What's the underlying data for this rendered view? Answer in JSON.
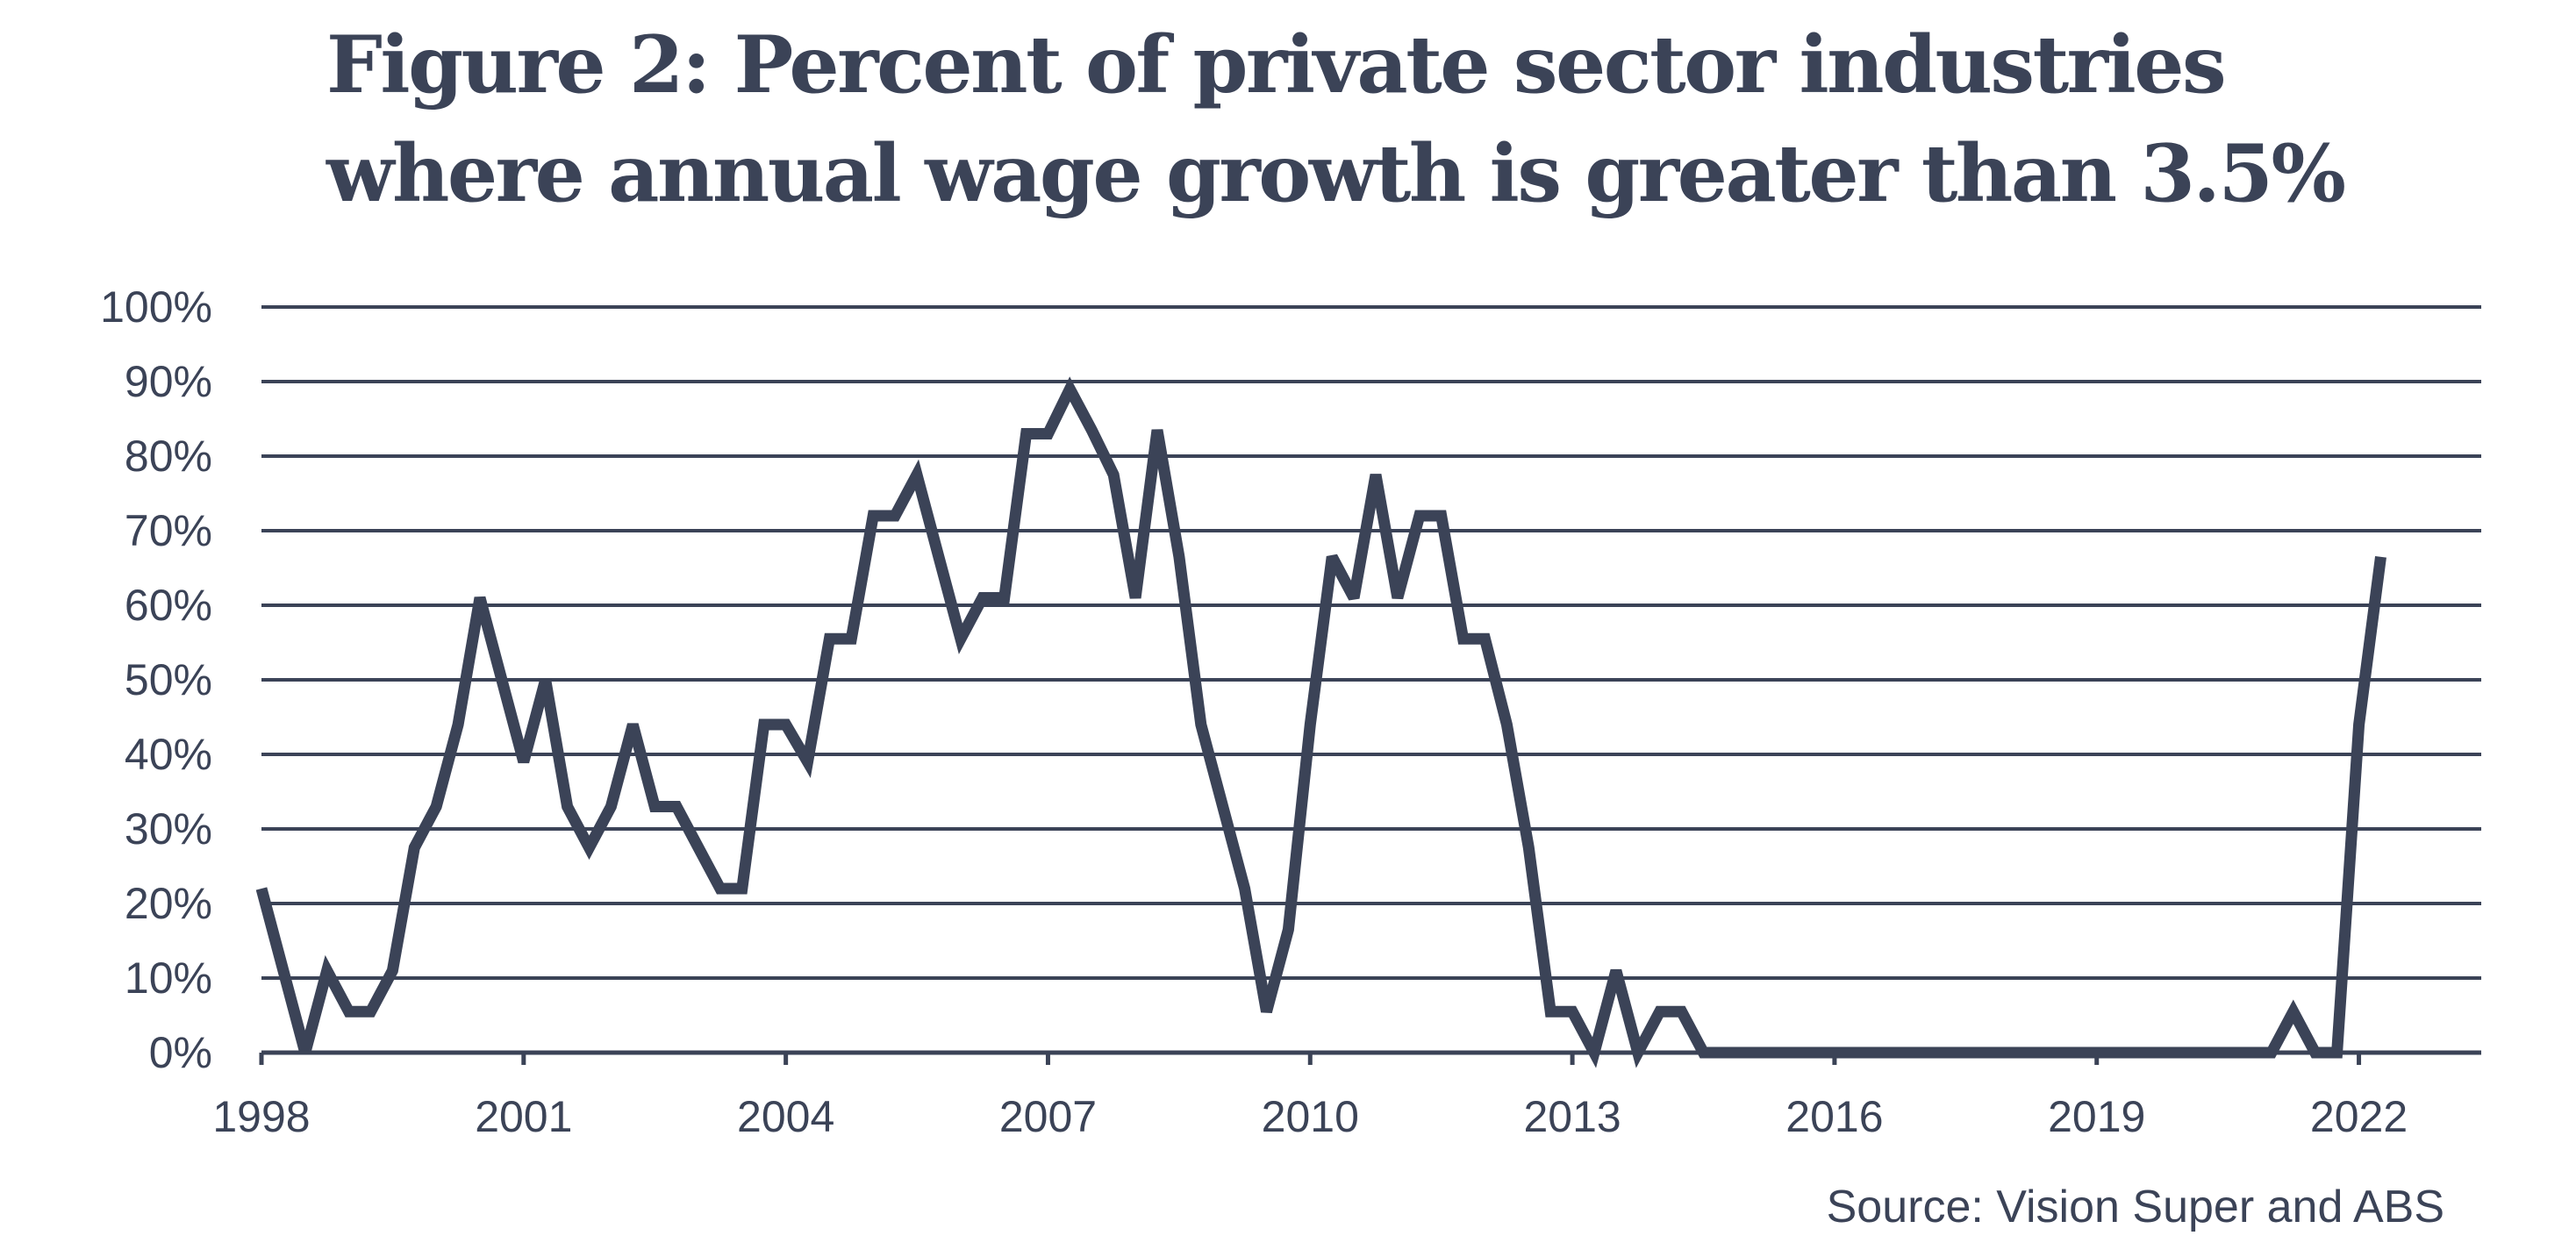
{
  "chart_data": {
    "type": "line",
    "title_lines": [
      "Figure 2: Percent of private sector industries",
      "where annual wage growth is greater than 3.5%"
    ],
    "source": "Source: Vision Super and ABS",
    "color": "#3b4357",
    "xlim": [
      1998,
      2023.4
    ],
    "ylim": [
      0,
      100
    ],
    "x_ticks": [
      1998,
      2001,
      2004,
      2007,
      2010,
      2013,
      2016,
      2019,
      2022
    ],
    "x_tick_labels": [
      "1998",
      "2001",
      "2004",
      "2007",
      "2010",
      "2013",
      "2016",
      "2019",
      "2022"
    ],
    "y_ticks": [
      0,
      10,
      20,
      30,
      40,
      50,
      60,
      70,
      80,
      90,
      100
    ],
    "y_tick_labels": [
      "0%",
      "10%",
      "20%",
      "30%",
      "40%",
      "50%",
      "60%",
      "70%",
      "80%",
      "90%",
      "100%"
    ],
    "grid": true,
    "series": [
      {
        "x": [
          1998.0,
          1998.25,
          1998.5,
          1998.75,
          1999.0,
          1999.25,
          1999.5,
          1999.75,
          2000.0,
          2000.25,
          2000.5,
          2000.75,
          2001.0,
          2001.25,
          2001.5,
          2001.75,
          2002.0,
          2002.25,
          2002.5,
          2002.75,
          2003.0,
          2003.25,
          2003.5,
          2003.75,
          2004.0,
          2004.25,
          2004.5,
          2004.75,
          2005.0,
          2005.25,
          2005.5,
          2005.75,
          2006.0,
          2006.25,
          2006.5,
          2006.75,
          2007.0,
          2007.25,
          2007.5,
          2007.75,
          2008.0,
          2008.25,
          2008.5,
          2008.75,
          2009.0,
          2009.25,
          2009.5,
          2009.75,
          2010.0,
          2010.25,
          2010.5,
          2010.75,
          2011.0,
          2011.25,
          2011.5,
          2011.75,
          2012.0,
          2012.25,
          2012.5,
          2012.75,
          2013.0,
          2013.25,
          2013.5,
          2013.75,
          2014.0,
          2014.25,
          2014.5,
          2014.75,
          2015.0,
          2015.25,
          2015.5,
          2015.75,
          2016.0,
          2016.25,
          2016.5,
          2016.75,
          2017.0,
          2017.25,
          2017.5,
          2017.75,
          2018.0,
          2018.25,
          2018.5,
          2018.75,
          2019.0,
          2019.25,
          2019.5,
          2019.75,
          2020.0,
          2020.25,
          2020.5,
          2020.75,
          2021.0,
          2021.25,
          2021.5,
          2021.75,
          2022.0,
          2022.25
        ],
        "values": [
          22,
          11,
          0,
          11,
          5.5,
          5.5,
          11,
          27.5,
          33,
          44,
          61,
          50,
          39,
          50,
          33,
          27.5,
          33,
          44,
          33,
          33,
          27.5,
          22,
          22,
          44,
          44,
          39,
          55.5,
          55.5,
          72,
          72,
          77.5,
          66.5,
          55.5,
          61,
          61,
          83,
          83,
          89,
          83.5,
          77.5,
          61,
          83.5,
          66.5,
          44,
          33,
          22,
          5.5,
          16.5,
          44,
          66.5,
          61,
          77.5,
          61,
          72,
          72,
          55.5,
          55.5,
          44,
          27.5,
          5.5,
          5.5,
          0,
          11,
          0,
          5.5,
          5.5,
          0,
          0,
          0,
          0,
          0,
          0,
          0,
          0,
          0,
          0,
          0,
          0,
          0,
          0,
          0,
          0,
          0,
          0,
          0,
          0,
          0,
          0,
          0,
          0,
          0,
          0,
          0,
          5.5,
          0,
          0,
          44,
          66.5
        ]
      }
    ]
  }
}
